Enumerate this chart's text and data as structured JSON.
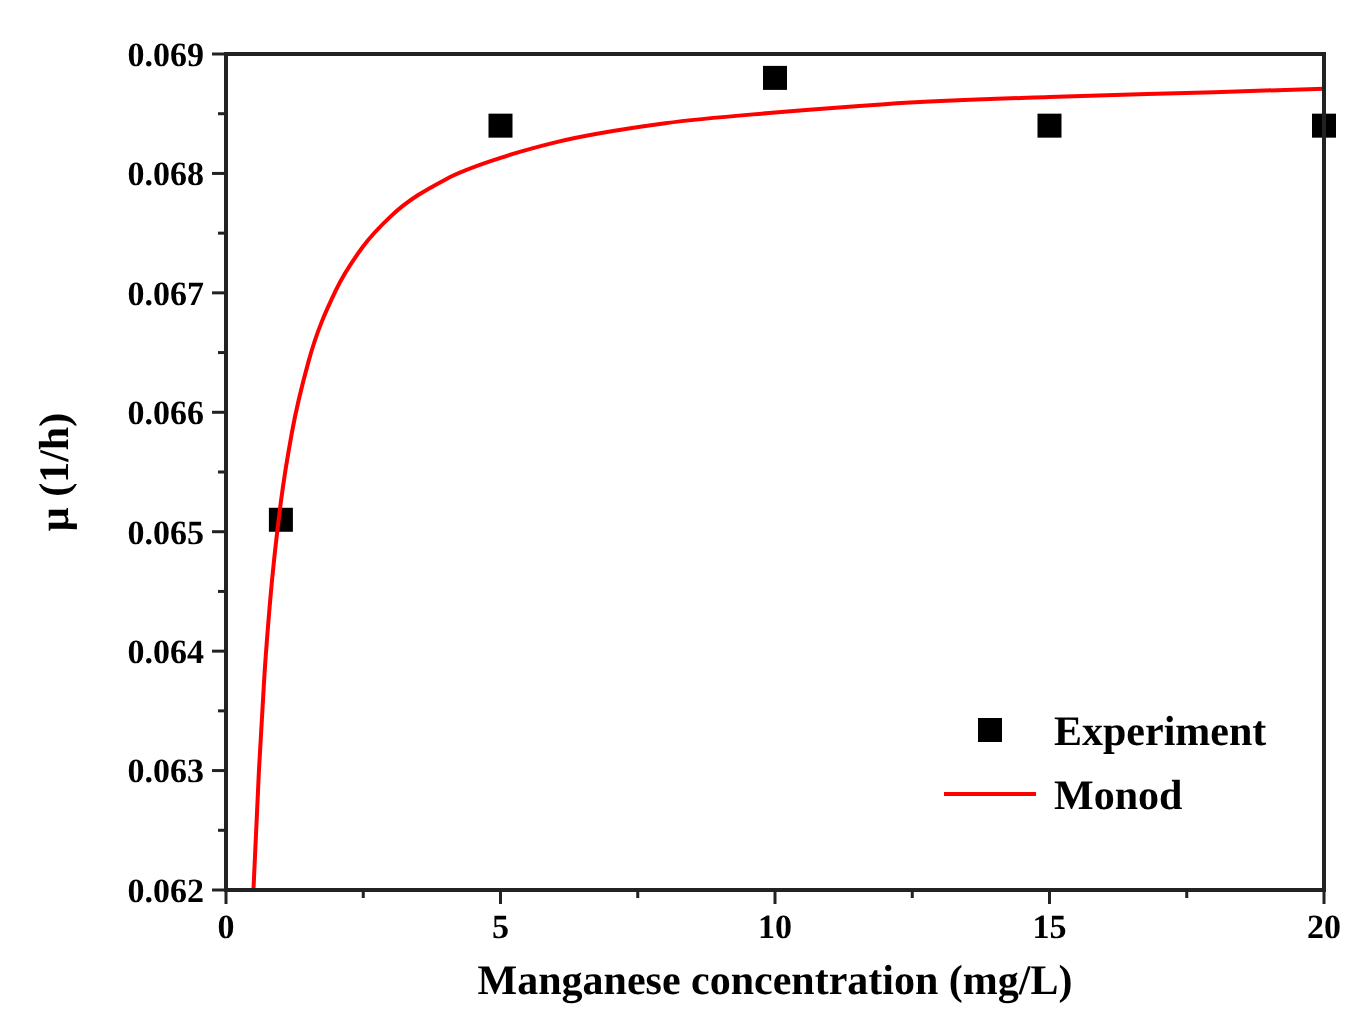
{
  "chart_data": {
    "type": "scatter",
    "xlabel": "Manganese concentration (mg/L)",
    "ylabel": "μ (1/h)",
    "xlim": [
      0,
      20
    ],
    "ylim": [
      0.062,
      0.069
    ],
    "xticks": [
      0,
      {
        "value": 2.5,
        "label": null
      },
      5,
      {
        "value": 7.5,
        "label": null
      },
      10,
      {
        "value": 12.5,
        "label": null
      },
      15,
      {
        "value": 17.5,
        "label": null
      },
      20
    ],
    "yticks": [
      0.062,
      {
        "value": 0.0625,
        "label": null
      },
      0.063,
      {
        "value": 0.0635,
        "label": null
      },
      0.064,
      {
        "value": 0.0645,
        "label": null
      },
      0.065,
      {
        "value": 0.0655,
        "label": null
      },
      0.066,
      {
        "value": 0.0665,
        "label": null
      },
      0.067,
      {
        "value": 0.0675,
        "label": null
      },
      0.068,
      {
        "value": 0.0685,
        "label": null
      },
      0.069
    ],
    "legend": "bottom right",
    "grid": false,
    "series": [
      {
        "name": "Experiment",
        "marker": "square",
        "color": "#000000",
        "x": [
          1,
          5,
          10,
          15,
          20
        ],
        "values": [
          0.0651,
          0.0684,
          0.0688,
          0.0684,
          0.0684
        ]
      },
      {
        "name": "Monod",
        "type": "line",
        "marker": "none",
        "line_style": "solid",
        "color": "#ff0000",
        "x": [
          0.5,
          0.6,
          0.7,
          0.8,
          1,
          1.2,
          1.5,
          2,
          2.5,
          3,
          4,
          5,
          6,
          8,
          10,
          12,
          15,
          18,
          20
        ],
        "values": [
          0.062,
          0.063,
          0.0638,
          0.0644,
          0.06525,
          0.06583,
          0.06642,
          0.06702,
          0.06739,
          0.06764,
          0.06795,
          0.06813,
          0.06826,
          0.06842,
          0.06851,
          0.06858,
          0.06864,
          0.06868,
          0.06871
        ]
      }
    ]
  }
}
